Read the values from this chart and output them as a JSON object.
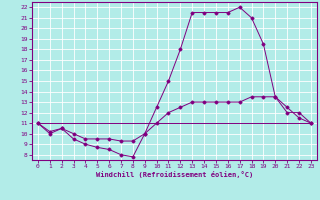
{
  "xlabel": "Windchill (Refroidissement éolien,°C)",
  "line_color": "#800080",
  "bg_color": "#b2ece8",
  "grid_color": "#ffffff",
  "xlim": [
    -0.5,
    23.5
  ],
  "ylim": [
    7.5,
    22.5
  ],
  "xticks": [
    0,
    1,
    2,
    3,
    4,
    5,
    6,
    7,
    8,
    9,
    10,
    11,
    12,
    13,
    14,
    15,
    16,
    17,
    18,
    19,
    20,
    21,
    22,
    23
  ],
  "yticks": [
    8,
    9,
    10,
    11,
    12,
    13,
    14,
    15,
    16,
    17,
    18,
    19,
    20,
    21,
    22
  ],
  "line1_x": [
    0,
    1,
    2,
    3,
    4,
    5,
    6,
    7,
    8,
    9,
    10,
    11,
    12,
    13,
    14,
    15,
    16,
    17,
    18,
    19,
    20,
    21,
    22,
    23
  ],
  "line1_y": [
    11,
    10,
    10.5,
    9.5,
    9,
    8.7,
    8.5,
    8.0,
    7.8,
    10,
    12.5,
    15,
    18,
    21.5,
    21.5,
    21.5,
    21.5,
    22,
    21,
    18.5,
    13.5,
    12.5,
    11.5,
    11
  ],
  "line2_x": [
    0,
    1,
    2,
    3,
    4,
    5,
    6,
    7,
    8,
    9,
    10,
    11,
    12,
    13,
    14,
    15,
    16,
    17,
    18,
    19,
    20,
    21,
    22,
    23
  ],
  "line2_y": [
    11,
    10.2,
    10.5,
    10.0,
    9.5,
    9.5,
    9.5,
    9.3,
    9.3,
    10,
    11,
    12,
    12.5,
    13,
    13,
    13,
    13,
    13,
    13.5,
    13.5,
    13.5,
    12,
    12,
    11
  ],
  "line3_x": [
    0,
    23
  ],
  "line3_y": [
    11,
    11
  ]
}
